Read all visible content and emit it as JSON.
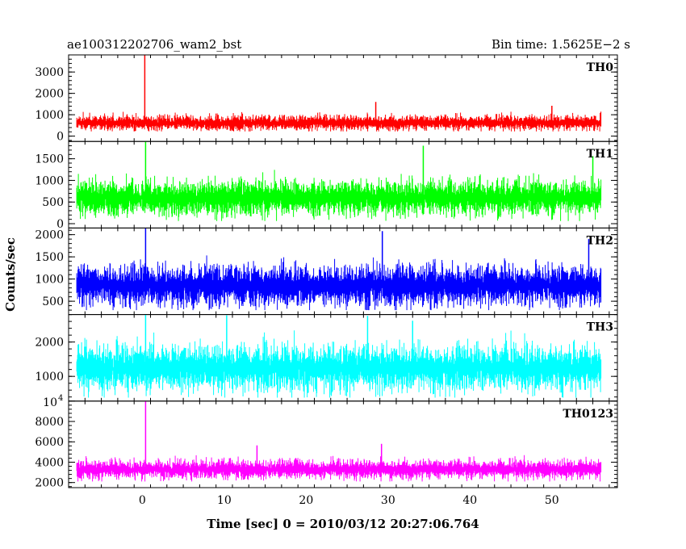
{
  "chart_data": {
    "type": "line",
    "title_left": "ae100312202706_wam2_bst",
    "title_right": "Bin time: 1.5625E−2 s",
    "xlabel": "Time [sec] 0 = 2010/03/12 20:27:06.764",
    "ylabel": "Counts/sec",
    "x_range": [
      -9,
      58
    ],
    "x_ticks": [
      0,
      10,
      20,
      30,
      40,
      50
    ],
    "x_tick_labels": [
      "0",
      "10",
      "20",
      "30",
      "40",
      "50"
    ],
    "data_x_range": [
      -8,
      56
    ],
    "panels": [
      {
        "name": "TH0",
        "color": "#ff0000",
        "ylim": [
          -250,
          3800
        ],
        "y_ticks": [
          0,
          1000,
          2000,
          3000
        ],
        "y_tick_labels": [
          "0",
          "1000",
          "2000",
          "3000"
        ],
        "baseline": 620,
        "noise_low": 220,
        "noise_high": 1250,
        "spikes": [
          {
            "x": 0.3,
            "y": 3800
          },
          {
            "x": 28.5,
            "y": 1600
          },
          {
            "x": 50,
            "y": 1420
          }
        ]
      },
      {
        "name": "TH1",
        "color": "#00ff00",
        "ylim": [
          -100,
          1900
        ],
        "y_ticks": [
          0,
          500,
          1000,
          1500
        ],
        "y_tick_labels": [
          "0",
          "500",
          "1000",
          "1500"
        ],
        "baseline": 600,
        "noise_low": 60,
        "noise_high": 1280,
        "spikes": [
          {
            "x": 0.4,
            "y": 1900
          },
          {
            "x": 34.3,
            "y": 1800
          },
          {
            "x": 55,
            "y": 1560
          }
        ]
      },
      {
        "name": "TH2",
        "color": "#0000ff",
        "ylim": [
          200,
          2150
        ],
        "y_ticks": [
          500,
          1000,
          1500,
          2000
        ],
        "y_tick_labels": [
          "500",
          "1000",
          "1500",
          "2000"
        ],
        "baseline": 850,
        "noise_low": 300,
        "noise_high": 1650,
        "spikes": [
          {
            "x": 0.4,
            "y": 2150
          },
          {
            "x": 29.3,
            "y": 2080
          },
          {
            "x": 54.5,
            "y": 1900
          }
        ]
      },
      {
        "name": "TH3",
        "color": "#00ffff",
        "ylim": [
          280,
          2800
        ],
        "y_ticks": [
          1000,
          2000
        ],
        "y_tick_labels": [
          "1000",
          "2000"
        ],
        "baseline": 1250,
        "noise_low": 380,
        "noise_high": 2350,
        "spikes": [
          {
            "x": 0.4,
            "y": 2800
          },
          {
            "x": 10.3,
            "y": 2780
          },
          {
            "x": 27.5,
            "y": 2760
          },
          {
            "x": 33,
            "y": 2620
          }
        ]
      },
      {
        "name": "TH0123",
        "color": "#ff00ff",
        "ylim": [
          1500,
          10000
        ],
        "y_ticks": [
          2000,
          4000,
          6000,
          8000,
          10000
        ],
        "y_tick_labels": [
          "2000",
          "4000",
          "6000",
          "8000",
          ""
        ],
        "y_top_label": "10",
        "y_top_label_exp": "4",
        "baseline": 3300,
        "noise_low": 2100,
        "noise_high": 4850,
        "spikes": [
          {
            "x": 0.4,
            "y": 10000
          },
          {
            "x": 14,
            "y": 5650
          },
          {
            "x": 29.2,
            "y": 5800
          }
        ]
      }
    ]
  }
}
